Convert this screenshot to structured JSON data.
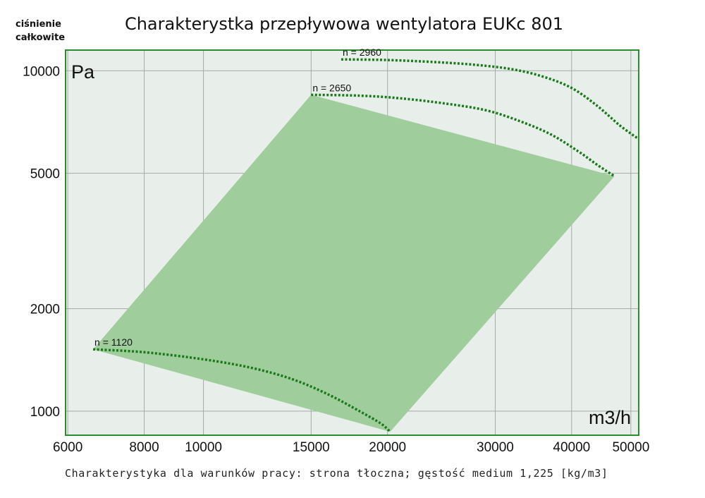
{
  "chart_data": {
    "type": "line",
    "title": "Charakterystka przepływowa wentylatora EUKc 801",
    "ylabel_lines": [
      "ciśnienie",
      "całkowite"
    ],
    "y_unit": "Pa",
    "x_unit": "m3/h",
    "x_scale": "log",
    "y_scale": "log",
    "xlim": [
      5950,
      51500
    ],
    "ylim": [
      850,
      11500
    ],
    "x_ticks": [
      {
        "value": 6000,
        "label": "6000"
      },
      {
        "value": 8000,
        "label": "8000"
      },
      {
        "value": 10000,
        "label": "10000"
      },
      {
        "value": 15000,
        "label": "15000"
      },
      {
        "value": 20000,
        "label": "20000"
      },
      {
        "value": 30000,
        "label": "30000"
      },
      {
        "value": 40000,
        "label": "40000"
      },
      {
        "value": 50000,
        "label": "50000"
      }
    ],
    "y_ticks": [
      {
        "value": 1000,
        "label": "1000"
      },
      {
        "value": 2000,
        "label": "2000"
      },
      {
        "value": 5000,
        "label": "5000"
      },
      {
        "value": 10000,
        "label": "10000"
      }
    ],
    "grid": true,
    "series": [
      {
        "name": "n = 1120",
        "style": "dotted",
        "x": [
          6600,
          8000,
          10000,
          12000,
          14000,
          16000,
          18000,
          19500,
          20200
        ],
        "y": [
          1520,
          1490,
          1420,
          1340,
          1240,
          1120,
          1000,
          920,
          870
        ]
      },
      {
        "name": "n = 2650",
        "style": "dotted",
        "x": [
          15000,
          18000,
          21000,
          25000,
          29000,
          33000,
          37000,
          41000,
          44000,
          47000
        ],
        "y": [
          8500,
          8450,
          8300,
          8000,
          7650,
          7100,
          6500,
          5800,
          5300,
          4900
        ]
      },
      {
        "name": "n = 2960",
        "style": "dotted",
        "x": [
          16800,
          20000,
          24000,
          28000,
          32000,
          36000,
          40000,
          44000,
          48000,
          51500
        ],
        "y": [
          10800,
          10750,
          10600,
          10400,
          10100,
          9600,
          8900,
          7900,
          6900,
          6300
        ]
      }
    ],
    "operating_area": {
      "color": "#a0cd9c",
      "boundary_x": [
        6600,
        15000,
        47000,
        20200
      ],
      "boundary_y": [
        1520,
        8500,
        4900,
        870
      ]
    },
    "colors": {
      "plot_background": "#e8efeb",
      "frame": "#2e8b2e",
      "grid": "#a6aaa6",
      "curve": "#1a7a1a",
      "area": "#a0cd9c"
    }
  },
  "footnote": "Charakterystyka dla warunków pracy: strona tłoczna; gęstość medium 1,225 [kg/m3]"
}
